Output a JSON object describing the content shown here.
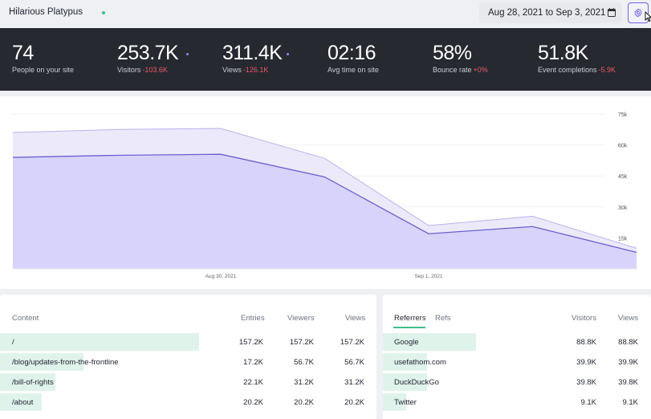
{
  "header": {
    "site_name": "Hilarious Platypus",
    "date_range": "Aug 28, 2021 to Sep 3, 2021"
  },
  "stats": [
    {
      "value": "74",
      "label": "People on your site",
      "change": ""
    },
    {
      "value": "253.7K",
      "label": "Visitors",
      "change": "-103.6K"
    },
    {
      "value": "311.4K",
      "label": "Views",
      "change": "-126.1K"
    },
    {
      "value": "02:16",
      "label": "Avg time on site",
      "change": ""
    },
    {
      "value": "58%",
      "label": "Bounce rate",
      "change": "+0%"
    },
    {
      "value": "51.8K",
      "label": "Event completions",
      "change": "-5.9K"
    }
  ],
  "chart_data": {
    "type": "area",
    "x_tick_labels": [
      "Aug 30, 2021",
      "Sep 1, 2021"
    ],
    "y_tick_labels": [
      "75k",
      "60k",
      "45k",
      "30k",
      "15k"
    ],
    "ylim": [
      0,
      75000
    ],
    "series": [
      {
        "values": [
          66000,
          67500,
          68000,
          53500,
          21000,
          25500,
          10000
        ]
      },
      {
        "values": [
          54000,
          55000,
          55500,
          44500,
          17000,
          20500,
          8000
        ]
      }
    ],
    "colors": {
      "views": "#ece9fb",
      "visitors": "#d8d3fa",
      "line": "#6a61cf"
    }
  },
  "content_table": {
    "headers": {
      "content": "Content",
      "entries": "Entries",
      "viewers": "Viewers",
      "views": "Views"
    },
    "rows": [
      {
        "path": "/",
        "entries": "157.2K",
        "viewers": "157.2K",
        "views": "157.2K",
        "share": 1.0
      },
      {
        "path": "/blog/updates-from-the-frontline",
        "entries": "17.2K",
        "viewers": "56.7K",
        "views": "56.7K",
        "share": 0.42
      },
      {
        "path": "/bill-of-rights",
        "entries": "22.1K",
        "viewers": "31.2K",
        "views": "31.2K",
        "share": 0.28
      },
      {
        "path": "/about",
        "entries": "20.2K",
        "viewers": "20.2K",
        "views": "20.2K",
        "share": 0.21
      }
    ]
  },
  "referrers_table": {
    "tabs": {
      "referrers": "Referrers",
      "refs": "Refs"
    },
    "headers": {
      "visitors": "Visitors",
      "views": "Views"
    },
    "rows": [
      {
        "source": "Google",
        "visitors": "88.8K",
        "views": "88.8K",
        "share": 1.0
      },
      {
        "source": "usefathom.com",
        "visitors": "39.9K",
        "views": "39.9K",
        "share": 0.47
      },
      {
        "source": "DuckDuckGo",
        "visitors": "39.8K",
        "views": "39.8K",
        "share": 0.47
      },
      {
        "source": "Twitter",
        "visitors": "9.1K",
        "views": "9.1K",
        "share": 0.25
      }
    ]
  }
}
